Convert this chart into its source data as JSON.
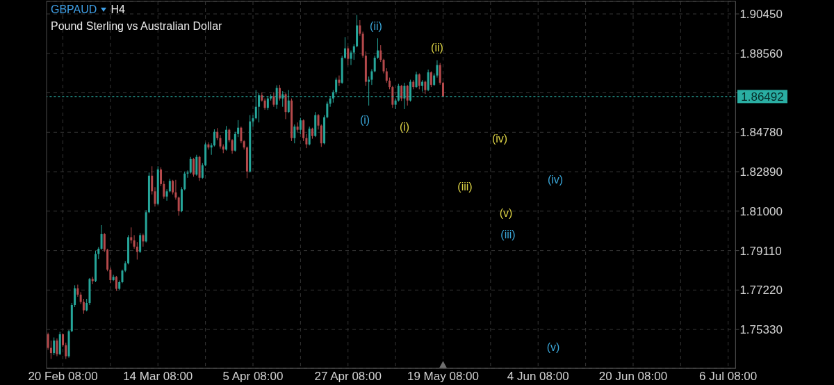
{
  "chart_data": {
    "type": "candlestick",
    "title": "GBPAUD",
    "subtitle": "Pound Sterling vs Australian Dollar",
    "annotations": [
      "H4",
      "(i)",
      "(ii)",
      "(iii)",
      "(iv)",
      "(v)",
      "(i)",
      "(ii)",
      "(iii)",
      "(iv)",
      "(v)"
    ],
    "categories": [
      null,
      null,
      null,
      null,
      null,
      "20 Feb 08:00",
      null,
      null,
      null,
      null,
      null,
      null,
      null,
      null,
      null,
      null,
      null,
      null,
      null,
      null,
      null,
      null,
      null,
      null,
      null,
      null,
      null,
      null,
      null,
      null,
      null,
      null,
      null,
      null,
      null,
      null,
      null,
      "14 Mar 08:00",
      null,
      null,
      null,
      null,
      null,
      null,
      null,
      null,
      null,
      null,
      null,
      null,
      null,
      null,
      null,
      null,
      null,
      null,
      null,
      null,
      null,
      null,
      null,
      null,
      null,
      null,
      null,
      null,
      null,
      null,
      null,
      "5 Apr 08:00",
      null,
      null,
      null,
      null,
      null,
      null,
      null,
      null,
      null,
      null,
      null,
      null,
      null,
      null,
      null,
      null,
      null,
      null,
      null,
      null,
      null,
      null,
      null,
      null,
      null,
      null,
      null,
      null,
      null,
      null,
      null,
      "27 Apr 08:00",
      null,
      null,
      null,
      null,
      null,
      null,
      null,
      null,
      null,
      null,
      null,
      null,
      null,
      null,
      null,
      null,
      null,
      null,
      null,
      null,
      null,
      null,
      null,
      null,
      null,
      null,
      null,
      null,
      null,
      null,
      null,
      "19 May 08:00",
      null,
      null,
      null,
      null,
      null,
      null,
      null,
      null,
      null,
      null,
      null,
      null,
      null,
      null,
      null,
      null,
      null,
      null,
      null,
      null,
      null,
      null,
      null,
      null,
      null,
      null,
      null,
      null,
      null,
      null,
      null,
      "4 Jun 08:00",
      null,
      null,
      null,
      null,
      null,
      null,
      null,
      null,
      null,
      null,
      null,
      null,
      null,
      null,
      null,
      null,
      null,
      null,
      null,
      null,
      null,
      null,
      null,
      null,
      null,
      null,
      null,
      null,
      null,
      null,
      null,
      "20 Jun 08:00",
      null,
      null,
      null,
      null,
      null,
      null,
      null,
      null,
      null,
      null,
      null,
      null,
      null,
      null,
      null,
      null,
      null,
      null,
      null,
      null,
      null,
      null,
      null,
      null,
      null,
      null,
      null,
      null,
      null,
      null,
      null,
      "6 Jul 08:00",
      null,
      null
    ],
    "ohlc": [
      [
        1.751,
        1.7518,
        1.7436,
        1.7445
      ],
      [
        1.7445,
        1.748,
        1.7392,
        1.742
      ],
      [
        1.742,
        1.7495,
        1.741,
        1.748
      ],
      [
        1.748,
        1.749,
        1.7405,
        1.7415
      ],
      [
        1.7415,
        1.7522,
        1.741,
        1.751
      ],
      [
        1.751,
        1.7515,
        1.745,
        1.7458
      ],
      [
        1.7458,
        1.747,
        1.7392,
        1.7405
      ],
      [
        1.7405,
        1.753,
        1.7398,
        1.7525
      ],
      [
        1.7525,
        1.766,
        1.752,
        1.765
      ],
      [
        1.765,
        1.7745,
        1.764,
        1.773
      ],
      [
        1.773,
        1.7748,
        1.769,
        1.77
      ],
      [
        1.77,
        1.7712,
        1.7655,
        1.7665
      ],
      [
        1.7665,
        1.768,
        1.7608,
        1.7625
      ],
      [
        1.7625,
        1.768,
        1.762,
        1.766
      ],
      [
        1.766,
        1.778,
        1.765,
        1.7775
      ],
      [
        1.7775,
        1.7785,
        1.775,
        1.7765
      ],
      [
        1.7765,
        1.791,
        1.776,
        1.7895
      ],
      [
        1.7895,
        1.7928,
        1.787,
        1.792
      ],
      [
        1.792,
        1.8033,
        1.7915,
        1.799
      ],
      [
        1.799,
        1.7995,
        1.7905,
        1.7915
      ],
      [
        1.7915,
        1.792,
        1.7812,
        1.782
      ],
      [
        1.782,
        1.783,
        1.7755,
        1.777
      ],
      [
        1.777,
        1.7795,
        1.7765,
        1.7785
      ],
      [
        1.7785,
        1.779,
        1.7718,
        1.7728
      ],
      [
        1.7728,
        1.7768,
        1.7722,
        1.776
      ],
      [
        1.776,
        1.782,
        1.7755,
        1.7815
      ],
      [
        1.7815,
        1.786,
        1.7808,
        1.785
      ],
      [
        1.785,
        1.7985,
        1.7845,
        1.7975
      ],
      [
        1.7975,
        1.8022,
        1.7945,
        1.796
      ],
      [
        1.796,
        1.7985,
        1.792,
        1.793
      ],
      [
        1.793,
        1.7952,
        1.7868,
        1.7905
      ],
      [
        1.7905,
        1.7995,
        1.79,
        1.7985
      ],
      [
        1.7985,
        1.7992,
        1.793,
        1.7955
      ],
      [
        1.7955,
        1.8105,
        1.795,
        1.8095
      ],
      [
        1.8095,
        1.8285,
        1.809,
        1.827
      ],
      [
        1.827,
        1.8315,
        1.818,
        1.8195
      ],
      [
        1.8195,
        1.8215,
        1.8122,
        1.8135
      ],
      [
        1.8135,
        1.8315,
        1.813,
        1.83
      ],
      [
        1.83,
        1.831,
        1.822,
        1.823
      ],
      [
        1.823,
        1.8245,
        1.816,
        1.817
      ],
      [
        1.817,
        1.8205,
        1.815,
        1.8195
      ],
      [
        1.8195,
        1.8255,
        1.819,
        1.8245
      ],
      [
        1.8245,
        1.825,
        1.818,
        1.819
      ],
      [
        1.819,
        1.825,
        1.8155,
        1.8165
      ],
      [
        1.8165,
        1.817,
        1.8078,
        1.81
      ],
      [
        1.81,
        1.8215,
        1.8095,
        1.8205
      ],
      [
        1.8205,
        1.829,
        1.82,
        1.828
      ],
      [
        1.828,
        1.8295,
        1.826,
        1.8285
      ],
      [
        1.8285,
        1.836,
        1.828,
        1.835
      ],
      [
        1.835,
        1.8355,
        1.8265,
        1.8275
      ],
      [
        1.8275,
        1.837,
        1.827,
        1.836
      ],
      [
        1.836,
        1.8365,
        1.8245,
        1.826
      ],
      [
        1.826,
        1.833,
        1.8255,
        1.832
      ],
      [
        1.832,
        1.8428,
        1.8315,
        1.842
      ],
      [
        1.842,
        1.843,
        1.8395,
        1.8405
      ],
      [
        1.8405,
        1.8425,
        1.837,
        1.8415
      ],
      [
        1.8415,
        1.8492,
        1.841,
        1.848
      ],
      [
        1.848,
        1.8498,
        1.844,
        1.845
      ],
      [
        1.845,
        1.8465,
        1.84,
        1.841
      ],
      [
        1.841,
        1.842,
        1.8378,
        1.8395
      ],
      [
        1.8395,
        1.8508,
        1.839,
        1.849
      ],
      [
        1.849,
        1.8495,
        1.843,
        1.844
      ],
      [
        1.844,
        1.8445,
        1.8375,
        1.839
      ],
      [
        1.839,
        1.848,
        1.8385,
        1.847
      ],
      [
        1.847,
        1.8536,
        1.8455,
        1.85
      ],
      [
        1.85,
        1.8505,
        1.8425,
        1.8435
      ],
      [
        1.8435,
        1.844,
        1.8395,
        1.8405
      ],
      [
        1.8405,
        1.841,
        1.8258,
        1.829
      ],
      [
        1.829,
        1.856,
        1.8285,
        1.853
      ],
      [
        1.853,
        1.856,
        1.8505,
        1.8545
      ],
      [
        1.8545,
        1.868,
        1.854,
        1.86
      ],
      [
        1.86,
        1.8665,
        1.8525,
        1.8655
      ],
      [
        1.8655,
        1.8669,
        1.8625,
        1.863
      ],
      [
        1.863,
        1.864,
        1.8586,
        1.8595
      ],
      [
        1.8595,
        1.8647,
        1.8585,
        1.864
      ],
      [
        1.864,
        1.866,
        1.863,
        1.865
      ],
      [
        1.865,
        1.867,
        1.86,
        1.861
      ],
      [
        1.861,
        1.8703,
        1.859,
        1.869
      ],
      [
        1.869,
        1.8705,
        1.863,
        1.864
      ],
      [
        1.864,
        1.8675,
        1.86,
        1.866
      ],
      [
        1.866,
        1.8665,
        1.8541,
        1.8575
      ],
      [
        1.8575,
        1.868,
        1.857,
        1.863
      ],
      [
        1.863,
        1.864,
        1.8436,
        1.845
      ],
      [
        1.845,
        1.8515,
        1.8425,
        1.8505
      ],
      [
        1.8505,
        1.8525,
        1.848,
        1.849
      ],
      [
        1.849,
        1.8547,
        1.8469,
        1.8535
      ],
      [
        1.8535,
        1.854,
        1.8436,
        1.845
      ],
      [
        1.845,
        1.847,
        1.8402,
        1.842
      ],
      [
        1.842,
        1.8505,
        1.8415,
        1.8495
      ],
      [
        1.8495,
        1.85,
        1.8447,
        1.846
      ],
      [
        1.846,
        1.8575,
        1.8455,
        1.856
      ],
      [
        1.856,
        1.8565,
        1.8491,
        1.851
      ],
      [
        1.851,
        1.8515,
        1.8408,
        1.8425
      ],
      [
        1.8425,
        1.856,
        1.842,
        1.855
      ],
      [
        1.855,
        1.8625,
        1.8545,
        1.8615
      ],
      [
        1.8615,
        1.865,
        1.86,
        1.864
      ],
      [
        1.864,
        1.868,
        1.862,
        1.867
      ],
      [
        1.867,
        1.874,
        1.866,
        1.873
      ],
      [
        1.873,
        1.875,
        1.87,
        1.8715
      ],
      [
        1.8715,
        1.8845,
        1.871,
        1.8835
      ],
      [
        1.8835,
        1.8934,
        1.883,
        1.888
      ],
      [
        1.888,
        1.889,
        1.88,
        1.883
      ],
      [
        1.883,
        1.887,
        1.88,
        1.886
      ],
      [
        1.886,
        1.89,
        1.8825,
        1.889
      ],
      [
        1.889,
        1.904,
        1.8885,
        1.899
      ],
      [
        1.899,
        1.9015,
        1.894,
        1.895
      ],
      [
        1.895,
        1.896,
        1.8835,
        1.8845
      ],
      [
        1.8845,
        1.8865,
        1.87,
        1.872
      ],
      [
        1.872,
        1.8745,
        1.8606,
        1.873
      ],
      [
        1.873,
        1.878,
        1.8705,
        1.877
      ],
      [
        1.877,
        1.8845,
        1.8765,
        1.8835
      ],
      [
        1.8835,
        1.8928,
        1.883,
        1.887
      ],
      [
        1.887,
        1.8895,
        1.8815,
        1.8825
      ],
      [
        1.8825,
        1.883,
        1.876,
        1.877
      ],
      [
        1.877,
        1.8785,
        1.8715,
        1.8725
      ],
      [
        1.8725,
        1.874,
        1.8684,
        1.8695
      ],
      [
        1.8695,
        1.87,
        1.8595,
        1.861
      ],
      [
        1.861,
        1.864,
        1.8589,
        1.863
      ],
      [
        1.863,
        1.871,
        1.8625,
        1.87
      ],
      [
        1.87,
        1.8705,
        1.8628,
        1.864
      ],
      [
        1.864,
        1.8715,
        1.8589,
        1.87
      ],
      [
        1.87,
        1.8705,
        1.8606,
        1.863
      ],
      [
        1.863,
        1.873,
        1.8625,
        1.872
      ],
      [
        1.872,
        1.8728,
        1.8684,
        1.8695
      ],
      [
        1.8695,
        1.8768,
        1.869,
        1.8755
      ],
      [
        1.8755,
        1.876,
        1.8684,
        1.87
      ],
      [
        1.87,
        1.8728,
        1.8673,
        1.872
      ],
      [
        1.872,
        1.8725,
        1.8661,
        1.868
      ],
      [
        1.868,
        1.8778,
        1.8675,
        1.8765
      ],
      [
        1.8765,
        1.877,
        1.8695,
        1.8705
      ],
      [
        1.8705,
        1.876,
        1.87,
        1.875
      ],
      [
        1.875,
        1.8823,
        1.874,
        1.88
      ],
      [
        1.88,
        1.881,
        1.8706,
        1.8715
      ],
      [
        1.8715,
        1.872,
        1.8645,
        1.86492
      ],
      null,
      null,
      null,
      null,
      null,
      null,
      null,
      null,
      null,
      null,
      null,
      null,
      null,
      null,
      null,
      null,
      null,
      null,
      null,
      null,
      null,
      null,
      null,
      null,
      null,
      null,
      null,
      null,
      null,
      null,
      null,
      null,
      null,
      null,
      null,
      null,
      null,
      null,
      null,
      null,
      null,
      null,
      null,
      null,
      null,
      null,
      null,
      null,
      null,
      null,
      null,
      null,
      null,
      null,
      null,
      null,
      null,
      null,
      null,
      null,
      null,
      null,
      null,
      null,
      null,
      null,
      null,
      null,
      null,
      null,
      null,
      null,
      null,
      null,
      null,
      null,
      null,
      null,
      null,
      null,
      null,
      null,
      null,
      null,
      null,
      null,
      null,
      null,
      null,
      null,
      null,
      null,
      null,
      null,
      null,
      null,
      null,
      null
    ],
    "colors": [
      "#b5494b",
      "#b5494b",
      "#26a69a",
      "#b5494b",
      "#26a69a",
      "#b5494b",
      "#b5494b",
      "#26a69a",
      "#26a69a",
      "#26a69a",
      "#b5494b",
      "#b5494b",
      "#b5494b",
      "#26a69a",
      "#26a69a",
      "#b5494b",
      "#26a69a",
      "#26a69a",
      "#26a69a",
      "#b5494b",
      "#b5494b",
      "#b5494b",
      "#26a69a",
      "#b5494b",
      "#26a69a",
      "#26a69a",
      "#26a69a",
      "#26a69a",
      "#b5494b",
      "#b5494b",
      "#b5494b",
      "#26a69a",
      "#b5494b",
      "#26a69a",
      "#26a69a",
      "#b5494b",
      "#b5494b",
      "#26a69a",
      "#b5494b",
      "#b5494b",
      "#26a69a",
      "#26a69a",
      "#b5494b",
      "#b5494b",
      "#b5494b",
      "#26a69a",
      "#26a69a",
      "#26a69a",
      "#26a69a",
      "#b5494b",
      "#26a69a",
      "#b5494b",
      "#26a69a",
      "#26a69a",
      "#b5494b",
      "#26a69a",
      "#26a69a",
      "#b5494b",
      "#b5494b",
      "#b5494b",
      "#26a69a",
      "#b5494b",
      "#b5494b",
      "#26a69a",
      "#26a69a",
      "#b5494b",
      "#b5494b",
      "#b5494b",
      "#26a69a",
      "#26a69a",
      "#26a69a",
      "#26a69a",
      "#b5494b",
      "#b5494b",
      "#26a69a",
      "#26a69a",
      "#b5494b",
      "#26a69a",
      "#b5494b",
      "#26a69a",
      "#b5494b",
      "#26a69a",
      "#b5494b",
      "#26a69a",
      "#b5494b",
      "#26a69a",
      "#b5494b",
      "#b5494b",
      "#26a69a",
      "#b5494b",
      "#26a69a",
      "#b5494b",
      "#b5494b",
      "#26a69a",
      "#26a69a",
      "#26a69a",
      "#26a69a",
      "#26a69a",
      "#b5494b",
      "#26a69a",
      "#26a69a",
      "#b5494b",
      "#26a69a",
      "#26a69a",
      "#26a69a",
      "#b5494b",
      "#b5494b",
      "#b5494b",
      "#26a69a",
      "#26a69a",
      "#26a69a",
      "#26a69a",
      "#b5494b",
      "#b5494b",
      "#b5494b",
      "#b5494b",
      "#b5494b",
      "#26a69a",
      "#26a69a",
      "#b5494b",
      "#26a69a",
      "#b5494b",
      "#26a69a",
      "#b5494b",
      "#26a69a",
      "#b5494b",
      "#26a69a",
      "#b5494b",
      "#26a69a",
      "#b5494b",
      "#26a69a",
      "#26a69a",
      "#b5494b",
      "#b5494b",
      null,
      null,
      null,
      null,
      null,
      null,
      null,
      null,
      null,
      null,
      null,
      null,
      null,
      null,
      null,
      null,
      null,
      null,
      null,
      null,
      null,
      null,
      null,
      null,
      null,
      null,
      null,
      null,
      null,
      null,
      null,
      null,
      null,
      null,
      null,
      null,
      null,
      null,
      null,
      null,
      null,
      null,
      null,
      null,
      null,
      null,
      null,
      null,
      null,
      null,
      null,
      null,
      null,
      null,
      null,
      null,
      null,
      null,
      null,
      null,
      null,
      null,
      null,
      null,
      null,
      null,
      null,
      null,
      null,
      null,
      null,
      null,
      null,
      null,
      null,
      null,
      null,
      null,
      null,
      null,
      null,
      null,
      null,
      null,
      null,
      null,
      null,
      null,
      null,
      null,
      null,
      null,
      null,
      null,
      null,
      null,
      null,
      null
    ],
    "ylim": [
      1.7347,
      1.9105
    ],
    "yticks": [
      {
        "value": 1.7533,
        "label": "1.75330"
      },
      {
        "value": 1.7722,
        "label": "1.77220"
      },
      {
        "value": 1.7911,
        "label": "1.79110"
      },
      {
        "value": 1.81,
        "label": "1.81000"
      },
      {
        "value": 1.8289,
        "label": "1.82890"
      },
      {
        "value": 1.8478,
        "label": "1.84780"
      },
      {
        "value": 1.8667,
        "label": null
      },
      {
        "value": 1.8856,
        "label": "1.88560"
      },
      {
        "value": 1.9045,
        "label": "1.90450"
      }
    ],
    "ref_lines": [
      {
        "axis": "y",
        "value": 1.86492,
        "label": "1.86492",
        "color": "#2aaea3",
        "line_style": "dashed"
      }
    ],
    "grid": true
  }
}
